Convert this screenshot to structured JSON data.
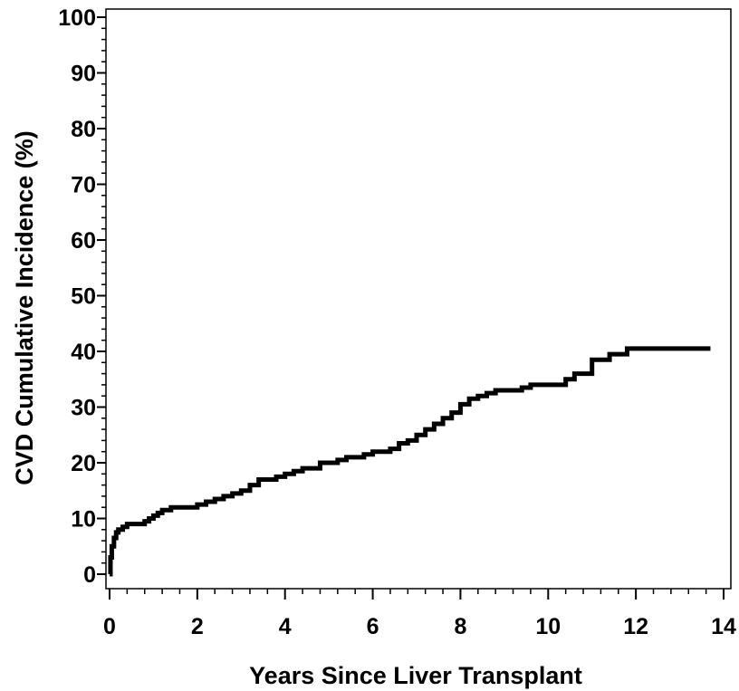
{
  "chart_data": {
    "type": "line",
    "title": "",
    "xlabel": "Years Since Liver Transplant",
    "ylabel": "CVD Cumulative Incidence (%)",
    "xlim": [
      0,
      14
    ],
    "ylim": [
      0,
      100
    ],
    "xticks": [
      0,
      2,
      4,
      6,
      8,
      10,
      12,
      14
    ],
    "yticks": [
      0,
      10,
      20,
      30,
      40,
      50,
      60,
      70,
      80,
      90,
      100
    ],
    "x_minor_step": 0.4,
    "y_minor_step": 2,
    "grid": false,
    "line_color": "#000000",
    "step": true,
    "series": [
      {
        "x": [
          0,
          0.02,
          0.05,
          0.1,
          0.15,
          0.2,
          0.3,
          0.4,
          0.6,
          0.8,
          0.9,
          1.0,
          1.1,
          1.2,
          1.4,
          1.6,
          1.8,
          2.0,
          2.2,
          2.4,
          2.6,
          2.8,
          3.0,
          3.2,
          3.4,
          3.6,
          3.8,
          4.0,
          4.2,
          4.4,
          4.8,
          5.0,
          5.2,
          5.4,
          5.8,
          6.0,
          6.2,
          6.4,
          6.6,
          6.8,
          7.0,
          7.2,
          7.4,
          7.6,
          7.8,
          8.0,
          8.2,
          8.4,
          8.6,
          8.8,
          9.0,
          9.2,
          9.4,
          9.6,
          9.8,
          10.0,
          10.2,
          10.4,
          10.6,
          10.8,
          11.0,
          11.2,
          11.4,
          11.6,
          11.8,
          12.0,
          13.7
        ],
        "y": [
          0,
          3,
          5,
          6.5,
          7.5,
          8,
          8.5,
          9,
          9,
          9.5,
          10,
          10.5,
          11,
          11.5,
          12,
          12,
          12,
          12.5,
          13,
          13.5,
          14,
          14.5,
          15,
          16,
          17,
          17,
          17.5,
          18,
          18.5,
          19,
          20,
          20,
          20.5,
          21,
          21.5,
          22,
          22,
          22.5,
          23.5,
          24,
          25,
          26,
          27,
          28,
          29,
          30.5,
          31.5,
          32,
          32.5,
          33,
          33,
          33,
          33.5,
          34,
          34,
          34,
          34,
          35,
          36,
          36,
          38.5,
          38.5,
          39.5,
          39.5,
          40.5,
          40.5,
          40.5
        ]
      }
    ]
  }
}
